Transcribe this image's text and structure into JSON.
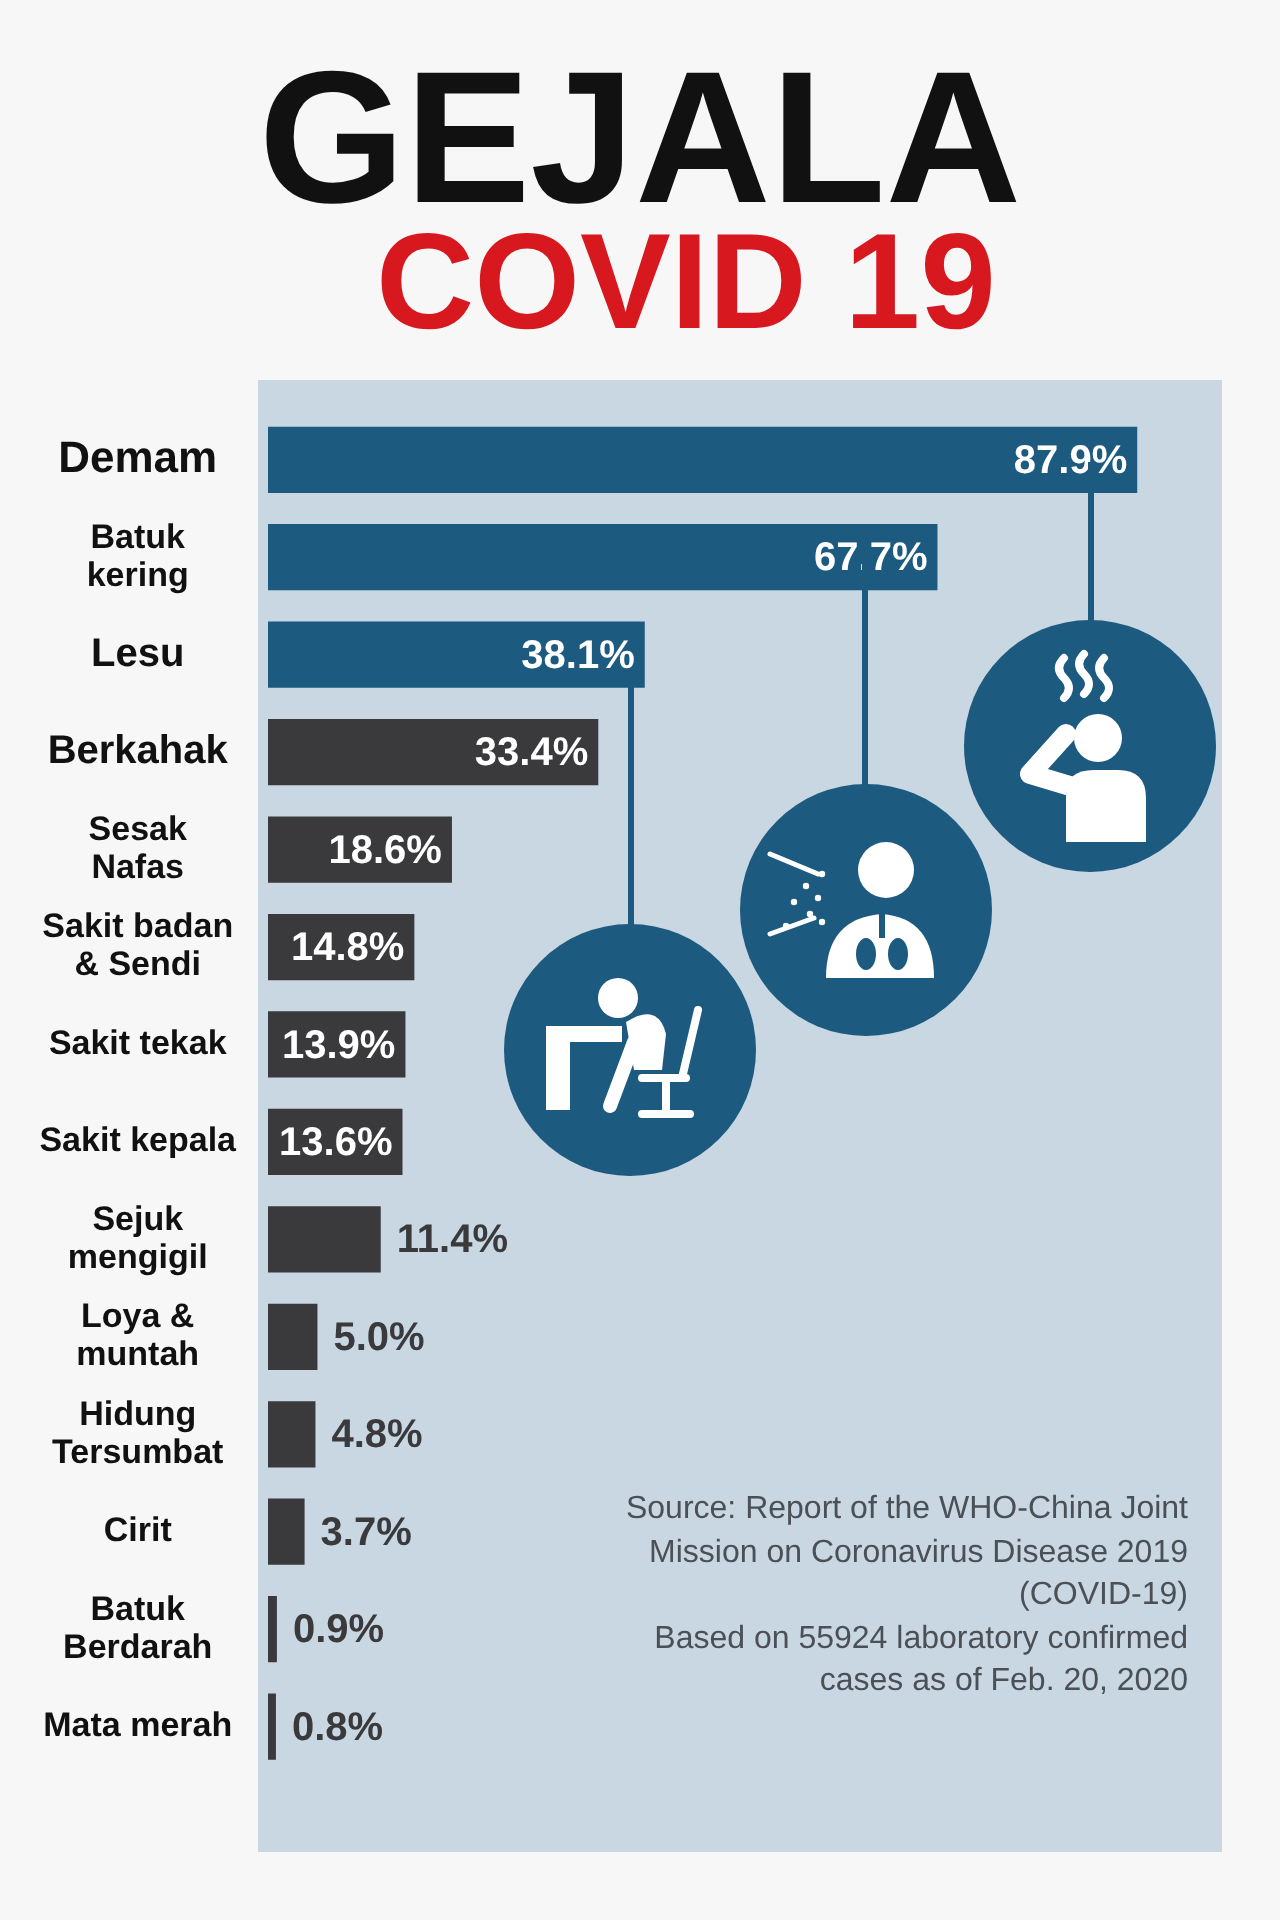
{
  "chart_data": {
    "type": "bar",
    "title": "GEJALA",
    "subtitle": "COVID 19",
    "orientation": "horizontal",
    "categories": [
      "Demam",
      "Batuk\nkering",
      "Lesu",
      "Berkahak",
      "Sesak\nNafas",
      "Sakit badan\n& Sendi",
      "Sakit tekak",
      "Sakit kepala",
      "Sejuk\nmengigil",
      "Loya &\nmuntah",
      "Hidung\nTersumbat",
      "Cirit",
      "Batuk\nBerdarah",
      "Mata merah"
    ],
    "values": [
      87.9,
      67.7,
      38.1,
      33.4,
      18.6,
      14.8,
      13.9,
      13.6,
      11.4,
      5.0,
      4.8,
      3.7,
      0.9,
      0.8
    ],
    "value_labels": [
      "87.9%",
      "67.7%",
      "38.1%",
      "33.4%",
      "18.6%",
      "14.8%",
      "13.9%",
      "13.6%",
      "11.4%",
      "5.0%",
      "4.8%",
      "3.7%",
      "0.9%",
      "0.8%"
    ],
    "colors": [
      "#1d5a80",
      "#1d5a80",
      "#1d5a80",
      "#3a393c",
      "#3a393c",
      "#3a393c",
      "#3a393c",
      "#3a393c",
      "#3a393c",
      "#3a393c",
      "#3a393c",
      "#3a393c",
      "#3a393c",
      "#3a393c"
    ],
    "tick_labels": "y",
    "annotations": [
      "Source: Report of the WHO-China Joint Mission on Coronavirus Disease 2019 (COVID-19)",
      "Based on 55924 laboratory confirmed cases as of Feb. 20, 2020"
    ]
  }
}
